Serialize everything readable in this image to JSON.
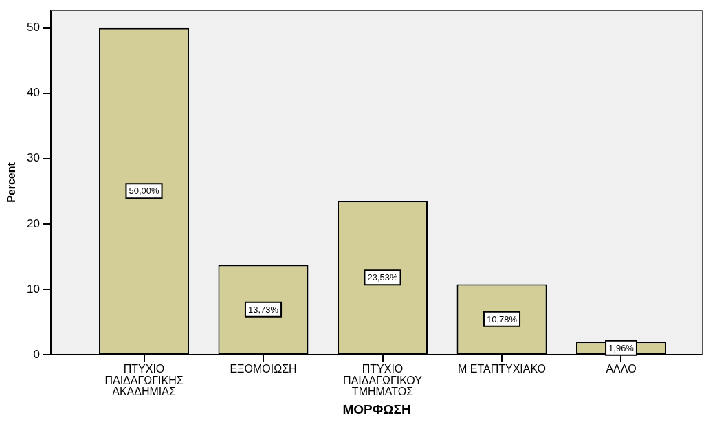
{
  "chart_data": {
    "type": "bar",
    "xlabel": "ΜΟΡΦΩΣΗ",
    "ylabel": "Percent",
    "categories": [
      "ΠΤΥΧΙΟ ΠΑΙΔΑΓΩΓΙΚΗΣ ΑΚΑΔΗΜΙΑΣ",
      "ΕΞΟΜΟΙΩΣΗ",
      "ΠΤΥΧΙΟ ΠΑΙΔΑΓΩΓΙΚΟΥ ΤΜΗΜΑΤΟΣ",
      "Μ ΕΤΑΠΤΥΧΙΑΚΟ",
      "ΑΛΛΟ"
    ],
    "values": [
      50,
      13.73,
      23.53,
      10.78,
      1.96
    ],
    "value_labels": [
      "50,00%",
      "13,73%",
      "23,53%",
      "10,78%",
      "1,96%"
    ],
    "color": "#d3ce97",
    "ylim": [
      0,
      52.7
    ],
    "yticks": [
      0,
      10,
      20,
      30,
      40,
      50
    ],
    "grid": false,
    "legend": false
  }
}
